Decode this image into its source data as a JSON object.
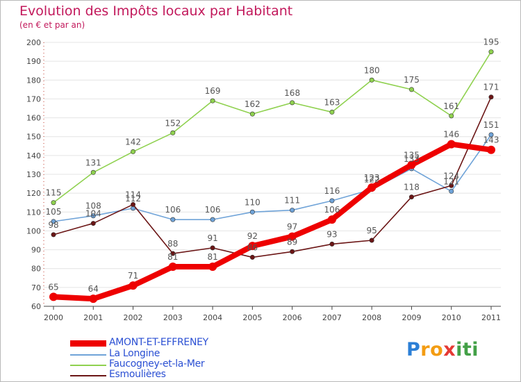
{
  "title": "Evolution des Impôts locaux par Habitant",
  "subtitle": "(en € et par an)",
  "chart_data": {
    "type": "line",
    "title": "Evolution des Impôts locaux par Habitant",
    "subtitle": "(en € et par an)",
    "xlabel": "",
    "ylabel": "",
    "categories": [
      "2000",
      "2001",
      "2002",
      "2003",
      "2004",
      "2005",
      "2006",
      "2007",
      "2008",
      "2009",
      "2010",
      "2011"
    ],
    "ylim": [
      60,
      200
    ],
    "yticks": [
      "60",
      "70",
      "80",
      "90",
      "100",
      "110",
      "120",
      "130",
      "140",
      "150",
      "160",
      "170",
      "180",
      "190",
      "200"
    ],
    "grid": "horizontal",
    "legend_position": "bottom-left",
    "series": [
      {
        "name": "Faucogney-et-la-Mer",
        "color": "#8fd14f",
        "values": [
          115,
          131,
          142,
          152,
          169,
          162,
          168,
          163,
          180,
          175,
          161,
          195
        ],
        "labels": [
          "115",
          "131",
          "142",
          "152",
          "169",
          "162",
          "168",
          "163",
          "180",
          "175",
          "161",
          "195"
        ]
      },
      {
        "name": "La Longine",
        "color": "#6fa3d8",
        "values": [
          105,
          108,
          112,
          106,
          106,
          110,
          111,
          116,
          122,
          133,
          121,
          151
        ],
        "labels": [
          "105",
          "108",
          "112",
          "106",
          "106",
          "110",
          "111",
          "116",
          "122",
          "133",
          "121",
          "151"
        ]
      },
      {
        "name": "Esmoulières",
        "color": "#6b1515",
        "values": [
          98,
          104,
          114,
          88,
          91,
          86,
          89,
          93,
          95,
          118,
          124,
          171
        ],
        "labels": [
          "98",
          "104",
          "114",
          "88",
          "91",
          "86",
          "89",
          "93",
          "95",
          "118",
          "124",
          "171"
        ]
      },
      {
        "name": "AMONT-ET-EFFRENEY",
        "color": "#ee0000",
        "values": [
          65,
          64,
          71,
          81,
          81,
          92,
          97,
          106,
          123,
          135,
          146,
          143
        ],
        "labels": [
          "65",
          "64",
          "71",
          "81",
          "81",
          "92",
          "97",
          "106",
          "123",
          "135",
          "146",
          "143"
        ]
      }
    ]
  },
  "legend": [
    {
      "label": "AMONT-ET-EFFRENEY",
      "color": "#ee0000"
    },
    {
      "label": "La Longine",
      "color": "#6fa3d8"
    },
    {
      "label": "Faucogney-et-la-Mer",
      "color": "#8fd14f"
    },
    {
      "label": "Esmoulières",
      "color": "#6b1515"
    }
  ],
  "brand": {
    "letters": [
      "P",
      "r",
      "o",
      "x",
      "i",
      "t",
      "i"
    ],
    "colors": [
      "#2c7fd6",
      "#f39c12",
      "#f39c12",
      "#e53935",
      "#43a047",
      "#43a047",
      "#43a047"
    ]
  }
}
